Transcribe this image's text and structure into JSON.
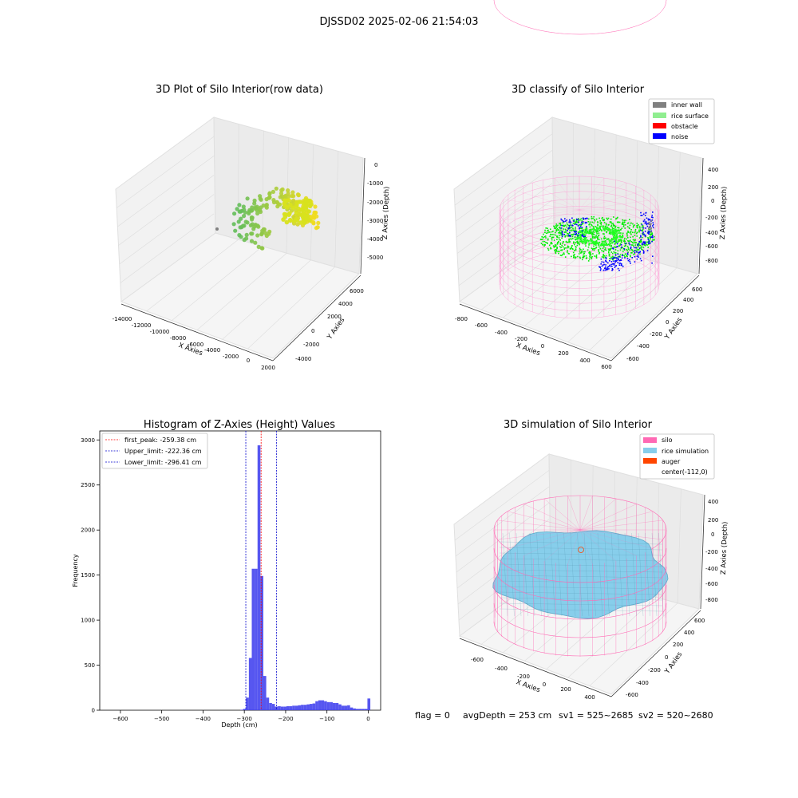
{
  "suptitle": "DJSSD02 2025-02-06 21:54:03",
  "status": {
    "flag": "flag = 0",
    "avg_depth": "avgDepth = 253 cm",
    "sv1": "sv1 = 525~2685",
    "sv2": "sv2 = 520~2680"
  },
  "colors": {
    "inner_wall": "#808080",
    "rice_surface": "#90ee90",
    "obstacle": "#ff0000",
    "noise": "#0000ff",
    "silo": "#ff69b4",
    "rice_simulation": "#87ceeb",
    "auger": "#ff4500",
    "hist_bar": "#4444ee",
    "first_peak_line": "#ff0000",
    "limit_lines": "#0000cc"
  },
  "chart_data": [
    {
      "type": "scatter",
      "projection": "3d",
      "title": "3D Plot of Silo Interior(row data)",
      "xlabel": "X Axies",
      "ylabel": "Y Axies",
      "zlabel": "Z Axies (Depth)",
      "xticks": [
        "-14000",
        "-12000",
        "-10000",
        "-8000",
        "-6000",
        "-4000",
        "-2000",
        "0",
        "2000"
      ],
      "yticks": [
        "-4000",
        "-2000",
        "0",
        "2000",
        "4000",
        "6000"
      ],
      "zticks": [
        "0",
        "-1000",
        "-2000",
        "-3000",
        "-4000",
        "-5000"
      ],
      "colormap": "viridis-like (green to yellow)",
      "grid": true
    },
    {
      "type": "scatter",
      "projection": "3d",
      "title": "3D classify of Silo Interior",
      "xlabel": "X Axies",
      "ylabel": "Y Axies",
      "zlabel": "Z Axies (Depth)",
      "xticks": [
        "-800",
        "-600",
        "-400",
        "-200",
        "0",
        "200",
        "400",
        "600"
      ],
      "yticks": [
        "-600",
        "-400",
        "-200",
        "0",
        "200",
        "400",
        "600"
      ],
      "zticks": [
        "400",
        "200",
        "0",
        "-200",
        "-400",
        "-600",
        "-800"
      ],
      "legend": [
        "inner wall",
        "rice surface",
        "obstacle",
        "noise"
      ],
      "legend_position": "top-right",
      "grid": true
    },
    {
      "type": "bar",
      "subtype": "histogram",
      "title": "Histogram of Z-Axies (Height) Values",
      "xlabel": "Depth (cm)",
      "ylabel": "Frequency",
      "xlim": [
        -650,
        30
      ],
      "ylim": [
        0,
        3100
      ],
      "xticks": [
        -600,
        -500,
        -400,
        -300,
        -200,
        -100,
        0
      ],
      "yticks": [
        0,
        500,
        1000,
        1500,
        2000,
        2500,
        3000
      ],
      "bin_width": 7,
      "bins": [
        [
          -310,
          5
        ],
        [
          -303,
          15
        ],
        [
          -296,
          140
        ],
        [
          -289,
          580
        ],
        [
          -282,
          1570
        ],
        [
          -275,
          1570
        ],
        [
          -268,
          2940
        ],
        [
          -261,
          1490
        ],
        [
          -254,
          380
        ],
        [
          -247,
          140
        ],
        [
          -240,
          80
        ],
        [
          -233,
          70
        ],
        [
          -226,
          40
        ],
        [
          -219,
          45
        ],
        [
          -212,
          40
        ],
        [
          -205,
          40
        ],
        [
          -198,
          45
        ],
        [
          -191,
          45
        ],
        [
          -184,
          50
        ],
        [
          -177,
          50
        ],
        [
          -170,
          55
        ],
        [
          -163,
          60
        ],
        [
          -156,
          60
        ],
        [
          -149,
          65
        ],
        [
          -142,
          70
        ],
        [
          -135,
          75
        ],
        [
          -128,
          100
        ],
        [
          -121,
          110
        ],
        [
          -114,
          110
        ],
        [
          -107,
          100
        ],
        [
          -100,
          90
        ],
        [
          -93,
          90
        ],
        [
          -86,
          80
        ],
        [
          -79,
          80
        ],
        [
          -72,
          65
        ],
        [
          -65,
          50
        ],
        [
          -58,
          50
        ],
        [
          -51,
          55
        ],
        [
          -44,
          30
        ],
        [
          -37,
          20
        ],
        [
          -30,
          15
        ],
        [
          -23,
          15
        ],
        [
          -16,
          15
        ],
        [
          -9,
          15
        ],
        [
          -2,
          130
        ]
      ],
      "reference_lines": [
        {
          "label": "first_peak: -259.38 cm",
          "x": -259.38,
          "color": "#ff0000"
        },
        {
          "label": "Upper_limit: -222.36 cm",
          "x": -222.36,
          "color": "#0000cc"
        },
        {
          "label": "Lower_limit: -296.41 cm",
          "x": -296.41,
          "color": "#0000cc"
        }
      ],
      "legend_position": "top-left",
      "grid": false
    },
    {
      "type": "area",
      "projection": "3d",
      "title": "3D simulation of Silo Interior",
      "xlabel": "X Axies",
      "ylabel": "Y Axies",
      "zlabel": "Z Axies (Depth)",
      "xticks": [
        "-600",
        "-400",
        "-200",
        "0",
        "200",
        "400"
      ],
      "yticks": [
        "-600",
        "-400",
        "-200",
        "0",
        "200",
        "400",
        "600"
      ],
      "zticks": [
        "400",
        "200",
        "0",
        "-200",
        "-400",
        "-600",
        "-800"
      ],
      "legend": [
        "silo",
        "rice simulation",
        "auger",
        "center(-112,0)"
      ],
      "legend_position": "top-right",
      "grid": true
    }
  ]
}
